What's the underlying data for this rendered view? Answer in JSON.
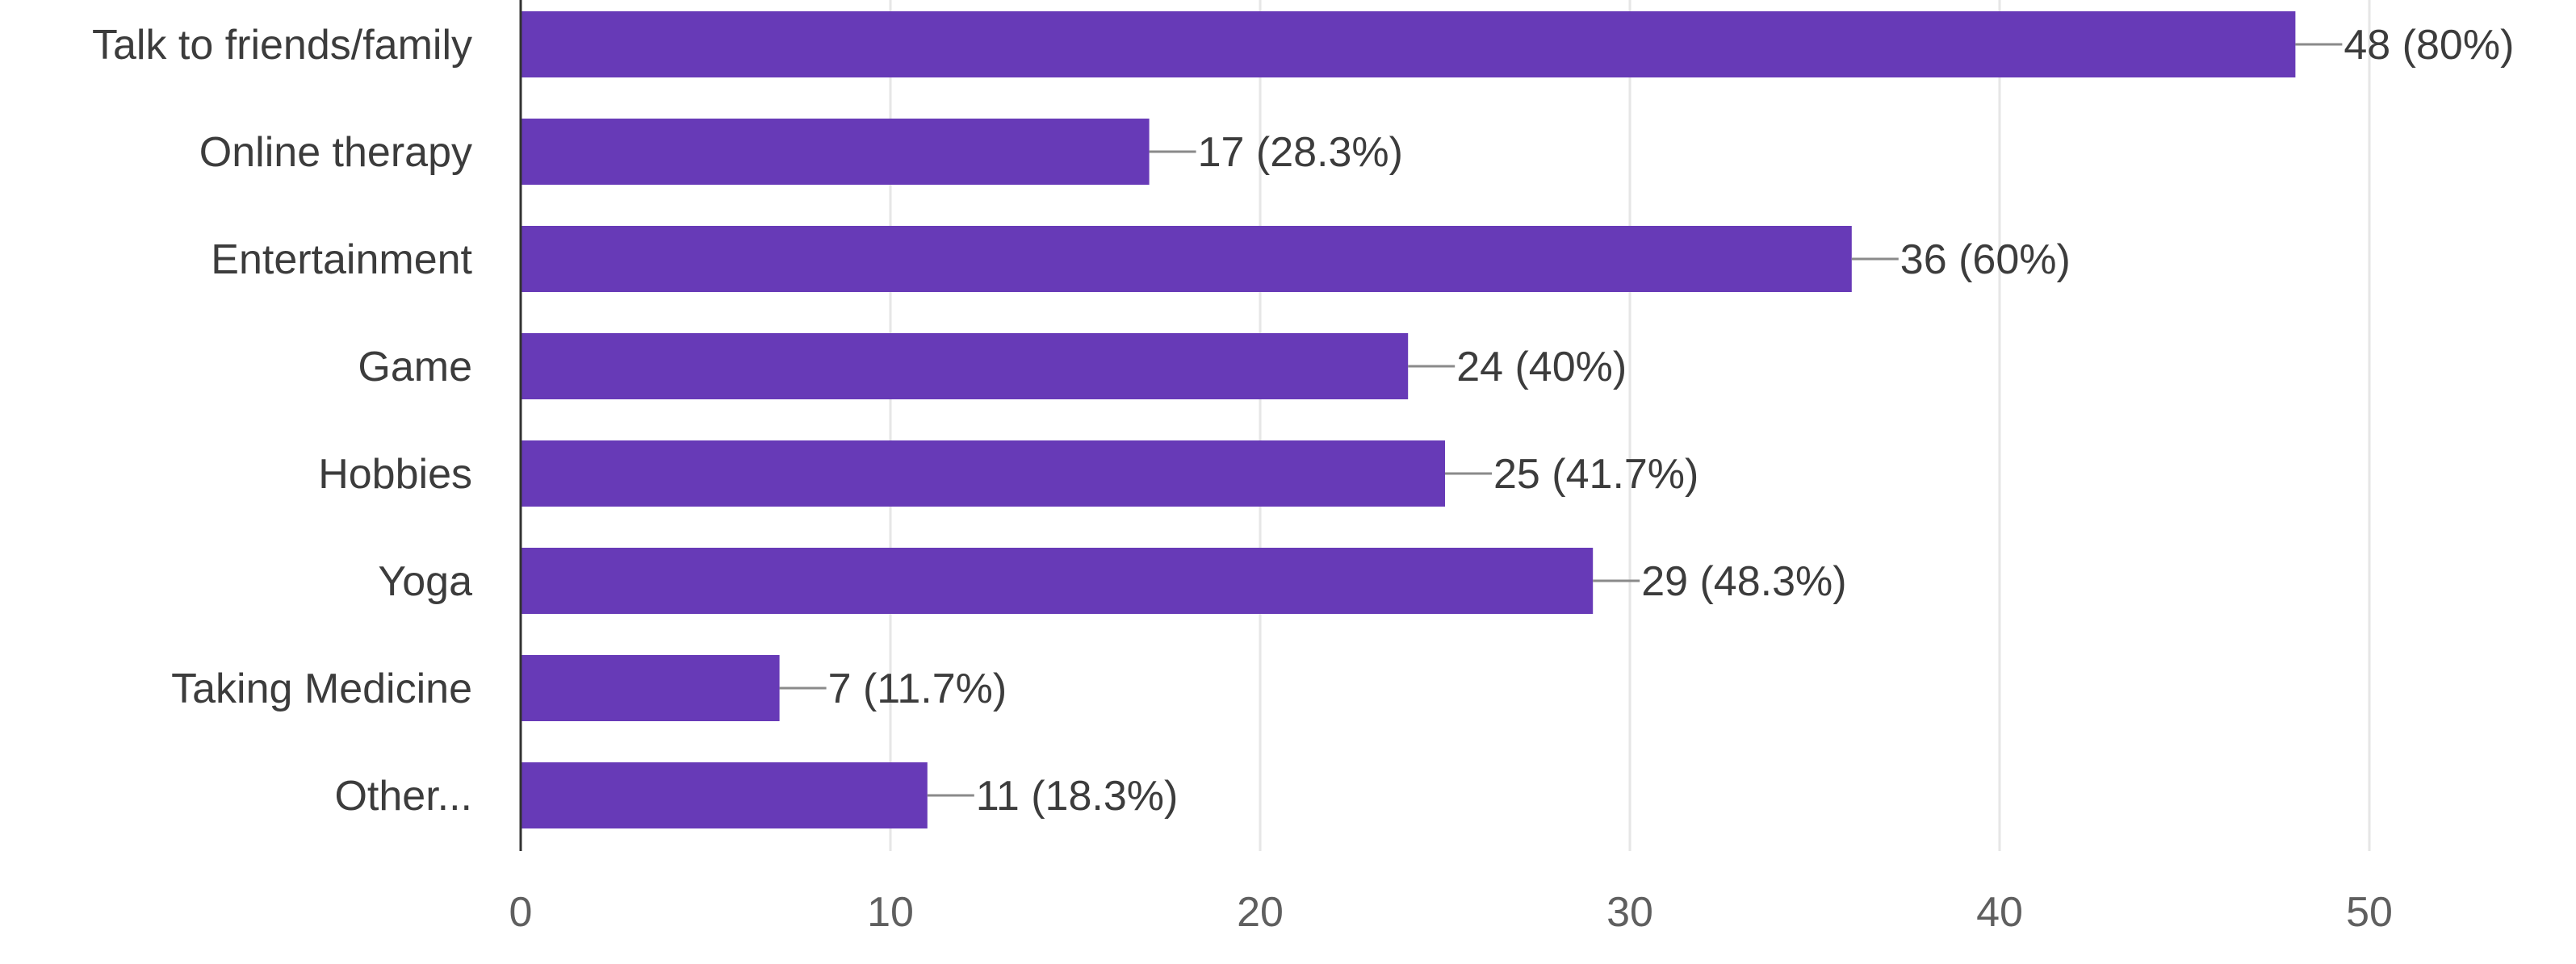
{
  "chart_data": {
    "type": "bar",
    "orientation": "horizontal",
    "categories": [
      "Talk to friends/family",
      "Online therapy",
      "Entertainment",
      "Game",
      "Hobbies",
      "Yoga",
      "Taking Medicine",
      "Other..."
    ],
    "values": [
      48,
      17,
      36,
      24,
      25,
      29,
      7,
      11
    ],
    "data_labels": [
      "48 (80%)",
      "17 (28.3%)",
      "36 (60%)",
      "24 (40%)",
      "25 (41.7%)",
      "29 (48.3%)",
      "7 (11.7%)",
      "11 (18.3%)"
    ],
    "xlim": [
      0,
      50
    ],
    "x_ticks": [
      "0",
      "10",
      "20",
      "30",
      "40",
      "50"
    ],
    "title": "",
    "xlabel": "",
    "ylabel": "",
    "grid": "vertical",
    "legend": "none"
  },
  "colors": {
    "bar": "#673ab7",
    "grid": "#e6e6e6",
    "axis": "#333333",
    "leader": "#8a8a8a"
  }
}
